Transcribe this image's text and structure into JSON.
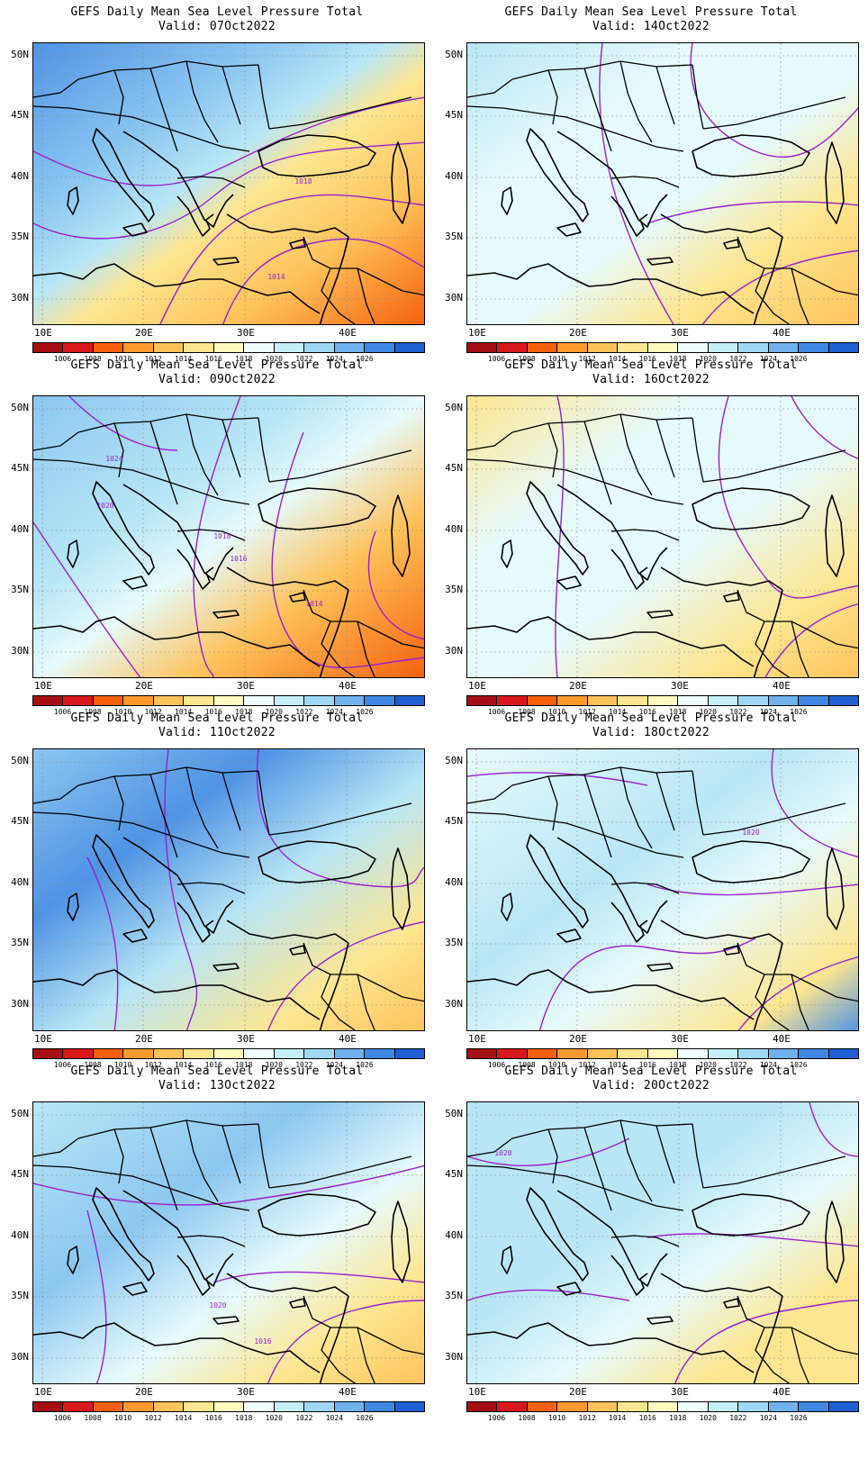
{
  "panels": [
    {
      "title": "GEFS Daily Mean Sea Level Pressure Total",
      "valid": "Valid: 07Oct2022",
      "base": 1024,
      "gradient": [
        [
          0.0,
          1024
        ],
        [
          0.3,
          1022
        ],
        [
          0.45,
          1020
        ],
        [
          0.55,
          1016
        ],
        [
          0.75,
          1014
        ],
        [
          1.0,
          1010
        ]
      ],
      "contour_labels": [
        "1018",
        "1014"
      ]
    },
    {
      "title": "GEFS Daily Mean Sea Level Pressure Total",
      "valid": "Valid: 14Oct2022",
      "base": 1018,
      "gradient": [
        [
          0.0,
          1020
        ],
        [
          0.3,
          1018
        ],
        [
          0.55,
          1018
        ],
        [
          0.75,
          1016
        ],
        [
          1.0,
          1014
        ]
      ],
      "contour_labels": []
    },
    {
      "title": "GEFS Daily Mean Sea Level Pressure Total",
      "valid": "Valid: 09Oct2022",
      "base": 1022,
      "gradient": [
        [
          0.0,
          1022
        ],
        [
          0.35,
          1020
        ],
        [
          0.5,
          1018
        ],
        [
          0.7,
          1014
        ],
        [
          1.0,
          1010
        ]
      ],
      "contour_labels": [
        "1024",
        "1020",
        "1018",
        "1016",
        "1014"
      ]
    },
    {
      "title": "GEFS Daily Mean Sea Level Pressure Total",
      "valid": "Valid: 16Oct2022",
      "base": 1016,
      "gradient": [
        [
          0.0,
          1016
        ],
        [
          0.3,
          1018
        ],
        [
          0.55,
          1018
        ],
        [
          0.8,
          1016
        ],
        [
          1.0,
          1014
        ]
      ],
      "contour_labels": []
    },
    {
      "title": "GEFS Daily Mean Sea Level Pressure Total",
      "valid": "Valid: 11Oct2022",
      "base": 1022,
      "gradient": [
        [
          0.0,
          1022
        ],
        [
          0.3,
          1024
        ],
        [
          0.55,
          1020
        ],
        [
          0.8,
          1016
        ],
        [
          1.0,
          1014
        ]
      ],
      "contour_labels": []
    },
    {
      "title": "GEFS Daily Mean Sea Level Pressure Total",
      "valid": "Valid: 18Oct2022",
      "base": 1018,
      "gradient": [
        [
          0.0,
          1018
        ],
        [
          0.4,
          1020
        ],
        [
          0.6,
          1018
        ],
        [
          0.85,
          1016
        ],
        [
          1.0,
          1024
        ]
      ],
      "contour_labels": [
        "1020"
      ]
    },
    {
      "title": "GEFS Daily Mean Sea Level Pressure Total",
      "valid": "Valid: 13Oct2022",
      "base": 1020,
      "gradient": [
        [
          0.0,
          1020
        ],
        [
          0.35,
          1022
        ],
        [
          0.6,
          1018
        ],
        [
          0.8,
          1016
        ],
        [
          1.0,
          1014
        ]
      ],
      "contour_labels": [
        "1020",
        "1016"
      ]
    },
    {
      "title": "GEFS Daily Mean Sea Level Pressure Total",
      "valid": "Valid: 20Oct2022",
      "base": 1020,
      "gradient": [
        [
          0.0,
          1020
        ],
        [
          0.4,
          1020
        ],
        [
          0.6,
          1018
        ],
        [
          0.8,
          1016
        ],
        [
          1.0,
          1016
        ]
      ],
      "contour_labels": [
        "1020"
      ]
    }
  ],
  "lat_labels": [
    "50N",
    "45N",
    "40N",
    "35N",
    "30N"
  ],
  "lon_labels": [
    "10E",
    "20E",
    "30E",
    "40E"
  ],
  "colorbar": {
    "levels": [
      "1006",
      "1008",
      "1010",
      "1012",
      "1014",
      "1016",
      "1018",
      "1020",
      "1022",
      "1024",
      "1026"
    ],
    "colors": [
      "#a50f15",
      "#d7191c",
      "#f4600c",
      "#fd9a2e",
      "#fec25a",
      "#fee690",
      "#fffbbf",
      "#f0fdfd",
      "#c6f0f8",
      "#9fd8f5",
      "#6fb2ee",
      "#3f87e3",
      "#1f5fd2"
    ]
  },
  "level_colors": {
    "1010": "#f4600c",
    "1012": "#fd9a2e",
    "1014": "#fec25a",
    "1016": "#fee690",
    "1018": "#e6fbfd",
    "1020": "#b8e6f6",
    "1022": "#8cc7f1",
    "1024": "#4f93e4",
    "1026": "#2b6ed8"
  },
  "contour_color": "#9a1fd0"
}
